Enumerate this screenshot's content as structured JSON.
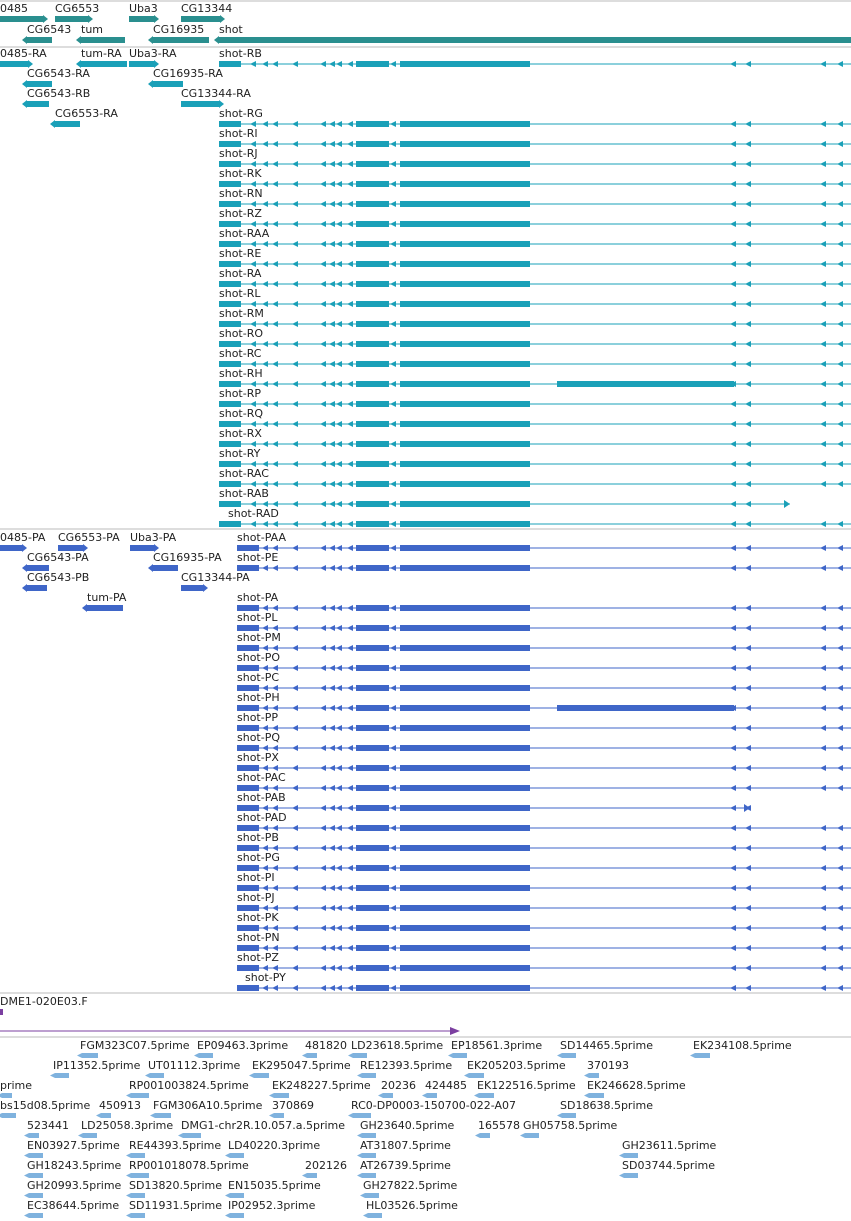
{
  "colors": {
    "gene": "#2a8f8f",
    "transcript": "#1aa0b8",
    "protein": "#3f66c8",
    "reagent": "#7b3fa0",
    "est": "#7fb2de",
    "label": "#222222",
    "separator": "#bbbbbb"
  },
  "tracks": {
    "genes": {
      "items": [
        {
          "label": "0485",
          "color": "gene",
          "text_xy": [
            0,
            12
          ],
          "bars": [
            [
              0,
              16,
              43,
              6,
              "r"
            ]
          ]
        },
        {
          "label": "CG6553",
          "color": "gene",
          "text_xy": [
            55,
            12
          ],
          "bars": [
            [
              55,
              16,
              33,
              6,
              "r"
            ]
          ]
        },
        {
          "label": "Uba3",
          "color": "gene",
          "text_xy": [
            129,
            12
          ],
          "bars": [
            [
              129,
              16,
              25,
              6,
              "r"
            ]
          ]
        },
        {
          "label": "CG13344",
          "color": "gene",
          "text_xy": [
            181,
            12
          ],
          "bars": [
            [
              181,
              16,
              39,
              6,
              "r"
            ]
          ]
        },
        {
          "label": "CG6543",
          "color": "gene",
          "text_xy": [
            27,
            33
          ],
          "bars": [
            [
              27,
              37,
              25,
              6,
              "l"
            ]
          ]
        },
        {
          "label": "tum",
          "color": "gene",
          "text_xy": [
            81,
            33
          ],
          "bars": [
            [
              81,
              37,
              44,
              6,
              "l"
            ]
          ]
        },
        {
          "label": "CG16935",
          "color": "gene",
          "text_xy": [
            153,
            33
          ],
          "bars": [
            [
              153,
              37,
              56,
              6,
              "l"
            ]
          ]
        },
        {
          "label": "shot",
          "color": "gene",
          "text_xy": [
            219,
            33
          ],
          "bars": [
            [
              219,
              37,
              632,
              6,
              "l"
            ]
          ]
        }
      ]
    },
    "transcripts": {
      "items": [
        {
          "label": "0485-RA",
          "color": "transcript",
          "text_xy": [
            0,
            57
          ],
          "bars": [
            [
              0,
              61,
              28,
              6,
              "r"
            ]
          ]
        },
        {
          "label": "tum-RA",
          "color": "transcript",
          "text_xy": [
            81,
            57
          ],
          "bars": [
            [
              81,
              61,
              46,
              6,
              "l"
            ]
          ]
        },
        {
          "label": "Uba3-RA",
          "color": "transcript",
          "text_xy": [
            129,
            57
          ],
          "bars": [
            [
              129,
              61,
              25,
              6,
              "r"
            ]
          ]
        },
        {
          "label": "CG6543-RA",
          "color": "transcript",
          "text_xy": [
            27,
            77
          ],
          "bars": [
            [
              27,
              81,
              25,
              6,
              "l"
            ]
          ]
        },
        {
          "label": "CG16935-RA",
          "color": "transcript",
          "text_xy": [
            153,
            77
          ],
          "bars": [
            [
              153,
              81,
              30,
              6,
              "l"
            ]
          ]
        },
        {
          "label": "CG6543-RB",
          "color": "transcript",
          "text_xy": [
            27,
            97
          ],
          "bars": [
            [
              27,
              101,
              22,
              6,
              "l"
            ]
          ]
        },
        {
          "label": "CG13344-RA",
          "color": "transcript",
          "text_xy": [
            181,
            97
          ],
          "bars": [
            [
              181,
              101,
              38,
              6,
              "r"
            ]
          ]
        },
        {
          "label": "CG6553-RA",
          "color": "transcript",
          "text_xy": [
            55,
            117
          ],
          "bars": [
            [
              55,
              121,
              25,
              6,
              "l"
            ]
          ]
        }
      ],
      "shot": {
        "color": "transcript",
        "x_start": 219,
        "labels": [
          "shot-RB",
          "shot-RG",
          "shot-RI",
          "shot-RJ",
          "shot-RK",
          "shot-RN",
          "shot-RZ",
          "shot-RAA",
          "shot-RE",
          "shot-RA",
          "shot-RL",
          "shot-RM",
          "shot-RO",
          "shot-RC",
          "shot-RH",
          "shot-RP",
          "shot-RQ",
          "shot-RX",
          "shot-RY",
          "shot-RAC",
          "shot-RAB",
          "shot-RAD"
        ]
      }
    },
    "proteins": {
      "items": [
        {
          "label": "0485-PA",
          "color": "protein",
          "text_xy": [
            0,
            541
          ],
          "bars": [
            [
              0,
              545,
              22,
              6,
              "r"
            ]
          ]
        },
        {
          "label": "CG6553-PA",
          "color": "protein",
          "text_xy": [
            58,
            541
          ],
          "bars": [
            [
              58,
              545,
              25,
              6,
              "r"
            ]
          ]
        },
        {
          "label": "Uba3-PA",
          "color": "protein",
          "text_xy": [
            130,
            541
          ],
          "bars": [
            [
              130,
              545,
              24,
              6,
              "r"
            ]
          ]
        },
        {
          "label": "CG6543-PA",
          "color": "protein",
          "text_xy": [
            27,
            561
          ],
          "bars": [
            [
              27,
              565,
              22,
              6,
              "l"
            ]
          ]
        },
        {
          "label": "CG16935-PA",
          "color": "protein",
          "text_xy": [
            153,
            561
          ],
          "bars": [
            [
              153,
              565,
              25,
              6,
              "l"
            ]
          ]
        },
        {
          "label": "CG6543-PB",
          "color": "protein",
          "text_xy": [
            27,
            581
          ],
          "bars": [
            [
              27,
              585,
              20,
              6,
              "l"
            ]
          ]
        },
        {
          "label": "CG13344-PA",
          "color": "protein",
          "text_xy": [
            181,
            581
          ],
          "bars": [
            [
              181,
              585,
              22,
              6,
              "r"
            ]
          ]
        },
        {
          "label": "tum-PA",
          "color": "protein",
          "text_xy": [
            87,
            601
          ],
          "bars": [
            [
              87,
              605,
              36,
              6,
              "l"
            ]
          ]
        }
      ],
      "shot": {
        "color": "protein",
        "x_start": 237,
        "labels": [
          "shot-PAA",
          "shot-PE",
          "shot-PA",
          "shot-PL",
          "shot-PM",
          "shot-PO",
          "shot-PC",
          "shot-PH",
          "shot-PP",
          "shot-PQ",
          "shot-PX",
          "shot-PAC",
          "shot-PAB",
          "shot-PAD",
          "shot-PB",
          "shot-PG",
          "shot-PI",
          "shot-PJ",
          "shot-PK",
          "shot-PN",
          "shot-PZ",
          "shot-PY"
        ]
      }
    },
    "reagent": {
      "label": "DME1-020E03.F",
      "color": "reagent"
    },
    "ests": {
      "color": "est",
      "items": [
        {
          "label": "FGM323C07.5prime",
          "xy": [
            80,
            1049
          ]
        },
        {
          "label": "EP09463.3prime",
          "xy": [
            197,
            1049
          ]
        },
        {
          "label": "481820",
          "xy": [
            305,
            1049
          ]
        },
        {
          "label": "LD23618.5prime",
          "xy": [
            351,
            1049
          ]
        },
        {
          "label": "EP18561.3prime",
          "xy": [
            451,
            1049
          ]
        },
        {
          "label": "SD14465.5prime",
          "xy": [
            560,
            1049
          ]
        },
        {
          "label": "EK234108.5prime",
          "xy": [
            693,
            1049
          ]
        },
        {
          "label": "IP11352.5prime",
          "xy": [
            53,
            1069
          ]
        },
        {
          "label": "UT01112.3prime",
          "xy": [
            148,
            1069
          ]
        },
        {
          "label": "EK295047.5prime",
          "xy": [
            252,
            1069
          ]
        },
        {
          "label": "RE12393.5prime",
          "xy": [
            360,
            1069
          ]
        },
        {
          "label": "EK205203.5prime",
          "xy": [
            467,
            1069
          ]
        },
        {
          "label": "370193",
          "xy": [
            587,
            1069
          ]
        },
        {
          "label": "prime",
          "xy": [
            0,
            1089
          ]
        },
        {
          "label": "RP001003824.5prime",
          "xy": [
            129,
            1089
          ]
        },
        {
          "label": "EK248227.5prime",
          "xy": [
            272,
            1089
          ]
        },
        {
          "label": "20236",
          "xy": [
            381,
            1089
          ]
        },
        {
          "label": "424485",
          "xy": [
            425,
            1089
          ]
        },
        {
          "label": "EK122516.5prime",
          "xy": [
            477,
            1089
          ]
        },
        {
          "label": "EK246628.5prime",
          "xy": [
            587,
            1089
          ]
        },
        {
          "label": "bs15d08.5prime",
          "xy": [
            0,
            1109
          ]
        },
        {
          "label": "450913",
          "xy": [
            99,
            1109
          ]
        },
        {
          "label": "FGM306A10.5prime",
          "xy": [
            153,
            1109
          ]
        },
        {
          "label": "370869",
          "xy": [
            272,
            1109
          ]
        },
        {
          "label": "RC0-DP0003-150700-022-A07",
          "xy": [
            351,
            1109
          ]
        },
        {
          "label": "SD18638.5prime",
          "xy": [
            560,
            1109
          ]
        },
        {
          "label": "523441",
          "xy": [
            27,
            1129
          ]
        },
        {
          "label": "LD25058.3prime",
          "xy": [
            81,
            1129
          ]
        },
        {
          "label": "DMG1-chr2R.10.057.a.5prime",
          "xy": [
            181,
            1129
          ]
        },
        {
          "label": "GH23640.5prime",
          "xy": [
            360,
            1129
          ]
        },
        {
          "label": "165578",
          "xy": [
            478,
            1129
          ]
        },
        {
          "label": "GH05758.5prime",
          "xy": [
            523,
            1129
          ]
        },
        {
          "label": "EN03927.5prime",
          "xy": [
            27,
            1149
          ]
        },
        {
          "label": "RE44393.5prime",
          "xy": [
            129,
            1149
          ]
        },
        {
          "label": "LD40220.3prime",
          "xy": [
            228,
            1149
          ]
        },
        {
          "label": "AT31807.5prime",
          "xy": [
            360,
            1149
          ]
        },
        {
          "label": "GH23611.5prime",
          "xy": [
            622,
            1149
          ]
        },
        {
          "label": "GH18243.5prime",
          "xy": [
            27,
            1169
          ]
        },
        {
          "label": "RP001018078.5prime",
          "xy": [
            129,
            1169
          ]
        },
        {
          "label": "202126",
          "xy": [
            305,
            1169
          ]
        },
        {
          "label": "AT26739.5prime",
          "xy": [
            360,
            1169
          ]
        },
        {
          "label": "SD03744.5prime",
          "xy": [
            622,
            1169
          ]
        },
        {
          "label": "GH20993.5prime",
          "xy": [
            27,
            1189
          ]
        },
        {
          "label": "SD13820.5prime",
          "xy": [
            129,
            1189
          ]
        },
        {
          "label": "EN15035.5prime",
          "xy": [
            228,
            1189
          ]
        },
        {
          "label": "GH27822.5prime",
          "xy": [
            363,
            1189
          ]
        },
        {
          "label": "EC38644.5prime",
          "xy": [
            27,
            1209
          ]
        },
        {
          "label": "SD11931.5prime",
          "xy": [
            129,
            1209
          ]
        },
        {
          "label": "IP02952.3prime",
          "xy": [
            228,
            1209
          ]
        },
        {
          "label": "HL03526.5prime",
          "xy": [
            366,
            1209
          ]
        }
      ]
    }
  }
}
